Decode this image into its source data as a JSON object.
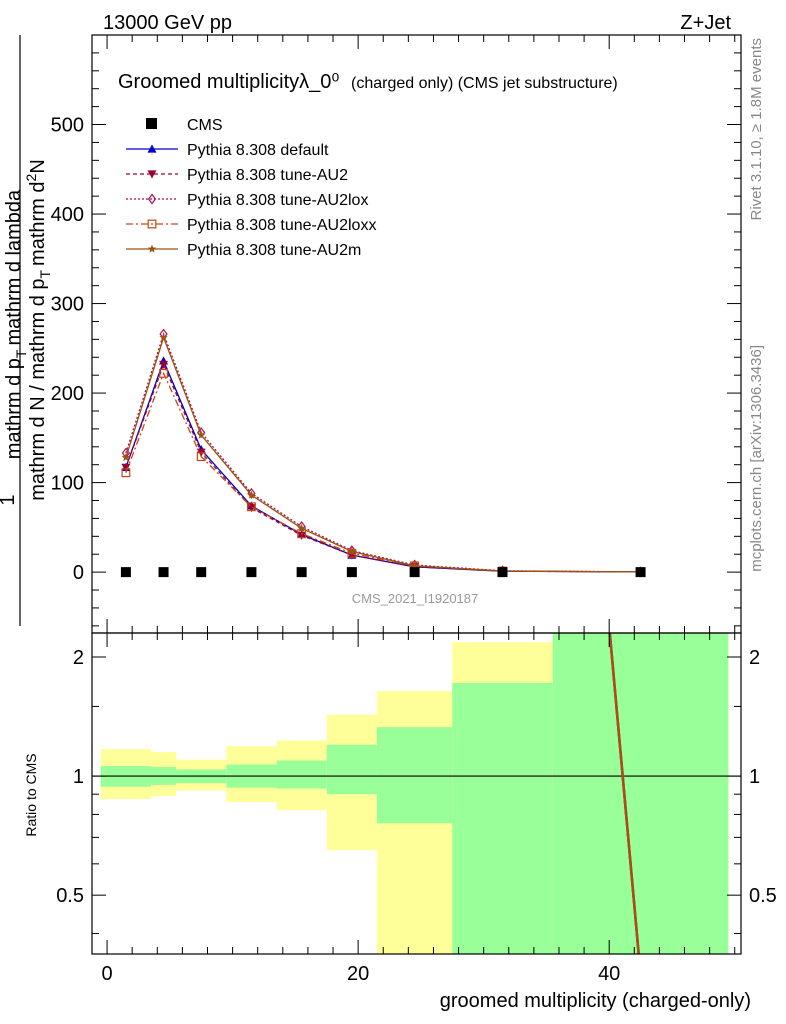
{
  "header": {
    "left": "13000 GeV pp",
    "right": "Z+Jet"
  },
  "side": {
    "rivet": "Rivet 3.1.10, ≥ 1.8M events",
    "mcplots": "mcplots.cern.ch [arXiv:1306.3436]"
  },
  "chart_data": [
    {
      "type": "line",
      "title": "Groomed multiplicityλ_0⁰",
      "title_suffix": "(charged only) (CMS jet substructure)",
      "ylabel": "1/mathrm d N / mathrm d p_T mathrm d^2N/mathrm d p_T mathrm d lambda",
      "ylabel_parts": [
        "1",
        "mathrm d N / mathrm d p",
        "T",
        "mathrm d",
        "2",
        "N",
        "mathrm d p",
        "T",
        "mathrm d lambda"
      ],
      "xlabel": "groomed multiplicity (charged-only)",
      "analysis_tag": "CMS_2021_I1920187",
      "xlim": [
        -1.2,
        50.5
      ],
      "ylim": [
        -68,
        600
      ],
      "yticks": [
        0,
        100,
        200,
        300,
        400,
        500
      ],
      "xticks": [
        0,
        20,
        40
      ],
      "legend_position": "top-left",
      "data": {
        "name": "CMS",
        "x": [
          1.5,
          4.5,
          7.5,
          11.5,
          15.5,
          19.5,
          24.5,
          31.5,
          42.5
        ],
        "y": [
          0,
          0,
          0,
          0,
          0,
          0,
          0,
          0,
          0
        ],
        "color": "#000000"
      },
      "series": [
        {
          "name": "Pythia 8.308 default",
          "color": "#0000cc",
          "marker": "triangle-up-filled",
          "dash": "",
          "x": [
            1.5,
            4.5,
            7.5,
            11.5,
            15.5,
            19.5,
            24.5,
            31.5,
            42.5
          ],
          "y": [
            117,
            236,
            137,
            74,
            42,
            19,
            6,
            1,
            0.2
          ]
        },
        {
          "name": "Pythia 8.308 tune-AU2",
          "color": "#990033",
          "marker": "triangle-down-filled",
          "dash": "4,3",
          "x": [
            1.5,
            4.5,
            7.5,
            11.5,
            15.5,
            19.5,
            24.5,
            31.5,
            42.5
          ],
          "y": [
            117,
            232,
            134,
            72,
            41,
            19,
            6,
            1,
            0.2
          ]
        },
        {
          "name": "Pythia 8.308 tune-AU2lox",
          "color": "#aa1155",
          "marker": "diamond-open",
          "dash": "2,2",
          "x": [
            1.5,
            4.5,
            7.5,
            11.5,
            15.5,
            19.5,
            24.5,
            31.5,
            42.5
          ],
          "y": [
            133,
            266,
            156,
            88,
            51,
            24,
            8,
            1.5,
            0.3
          ]
        },
        {
          "name": "Pythia 8.308 tune-AU2loxx",
          "color": "#cc4411",
          "marker": "square-open",
          "dash": "7,3,2,3",
          "x": [
            1.5,
            4.5,
            7.5,
            11.5,
            15.5,
            19.5,
            24.5,
            31.5,
            42.5
          ],
          "y": [
            111,
            222,
            129,
            73,
            43,
            21,
            7,
            1.2,
            0.2
          ]
        },
        {
          "name": "Pythia 8.308 tune-AU2m",
          "color": "#995511",
          "marker": "star-filled",
          "dash": "",
          "x": [
            1.5,
            4.5,
            7.5,
            11.5,
            15.5,
            19.5,
            24.5,
            31.5,
            42.5
          ],
          "y": [
            128,
            262,
            153,
            86,
            49,
            23,
            7,
            1.3,
            0.3
          ]
        }
      ]
    },
    {
      "type": "line",
      "title": "",
      "ylabel": "Ratio to CMS",
      "xlabel": "groomed multiplicity (charged-only)",
      "scale_y": "log",
      "ylim": [
        0.355,
        2.3
      ],
      "yticks": [
        0.5,
        1,
        2
      ],
      "ytick_labels": [
        "0.5",
        "1",
        "2"
      ],
      "xlim": [
        -1.2,
        50.5
      ],
      "reference_line": 1,
      "bands": {
        "outer_color": "#ffff99",
        "inner_color": "#99ff99",
        "bins": [
          {
            "x0": -0.5,
            "x1": 3.5,
            "outer": [
              0.875,
              1.17
            ],
            "inner": [
              0.94,
              1.06
            ]
          },
          {
            "x0": 3.5,
            "x1": 5.5,
            "outer": [
              0.89,
              1.15
            ],
            "inner": [
              0.95,
              1.055
            ]
          },
          {
            "x0": 5.5,
            "x1": 9.5,
            "outer": [
              0.92,
              1.1
            ],
            "inner": [
              0.96,
              1.04
            ]
          },
          {
            "x0": 9.5,
            "x1": 13.5,
            "outer": [
              0.86,
              1.19
            ],
            "inner": [
              0.935,
              1.07
            ]
          },
          {
            "x0": 13.5,
            "x1": 17.5,
            "outer": [
              0.82,
              1.23
            ],
            "inner": [
              0.93,
              1.095
            ]
          },
          {
            "x0": 17.5,
            "x1": 21.5,
            "outer": [
              0.65,
              1.43
            ],
            "inner": [
              0.9,
              1.2
            ]
          },
          {
            "x0": 21.5,
            "x1": 27.5,
            "outer": [
              0.35,
              1.64
            ],
            "inner": [
              0.76,
              1.33
            ]
          },
          {
            "x0": 27.5,
            "x1": 35.5,
            "outer": [
              0.35,
              2.18
            ],
            "inner": [
              0.35,
              1.72
            ]
          },
          {
            "x0": 35.5,
            "x1": 49.5,
            "outer": [
              0.35,
              2.5
            ],
            "inner": [
              0.35,
              2.5
            ]
          }
        ]
      },
      "series": [
        {
          "name": "Pythia 8.308 default",
          "color": "#0000cc",
          "x": [
            40.0,
            42.3
          ],
          "y": [
            2.3,
            0.355
          ]
        },
        {
          "name": "Pythia 8.308 tune-AU2",
          "color": "#990033",
          "x": [
            40.05,
            42.35
          ],
          "y": [
            2.3,
            0.355
          ]
        },
        {
          "name": "Pythia 8.308 tune-AU2lox",
          "color": "#aa1155",
          "x": [
            40.1,
            42.4
          ],
          "y": [
            2.3,
            0.355
          ]
        },
        {
          "name": "Pythia 8.308 tune-AU2loxx",
          "color": "#cc4411",
          "x": [
            40.0,
            42.3
          ],
          "y": [
            2.3,
            0.355
          ]
        },
        {
          "name": "Pythia 8.308 tune-AU2m",
          "color": "#995511",
          "x": [
            40.1,
            42.4
          ],
          "y": [
            2.3,
            0.355
          ]
        }
      ]
    }
  ]
}
